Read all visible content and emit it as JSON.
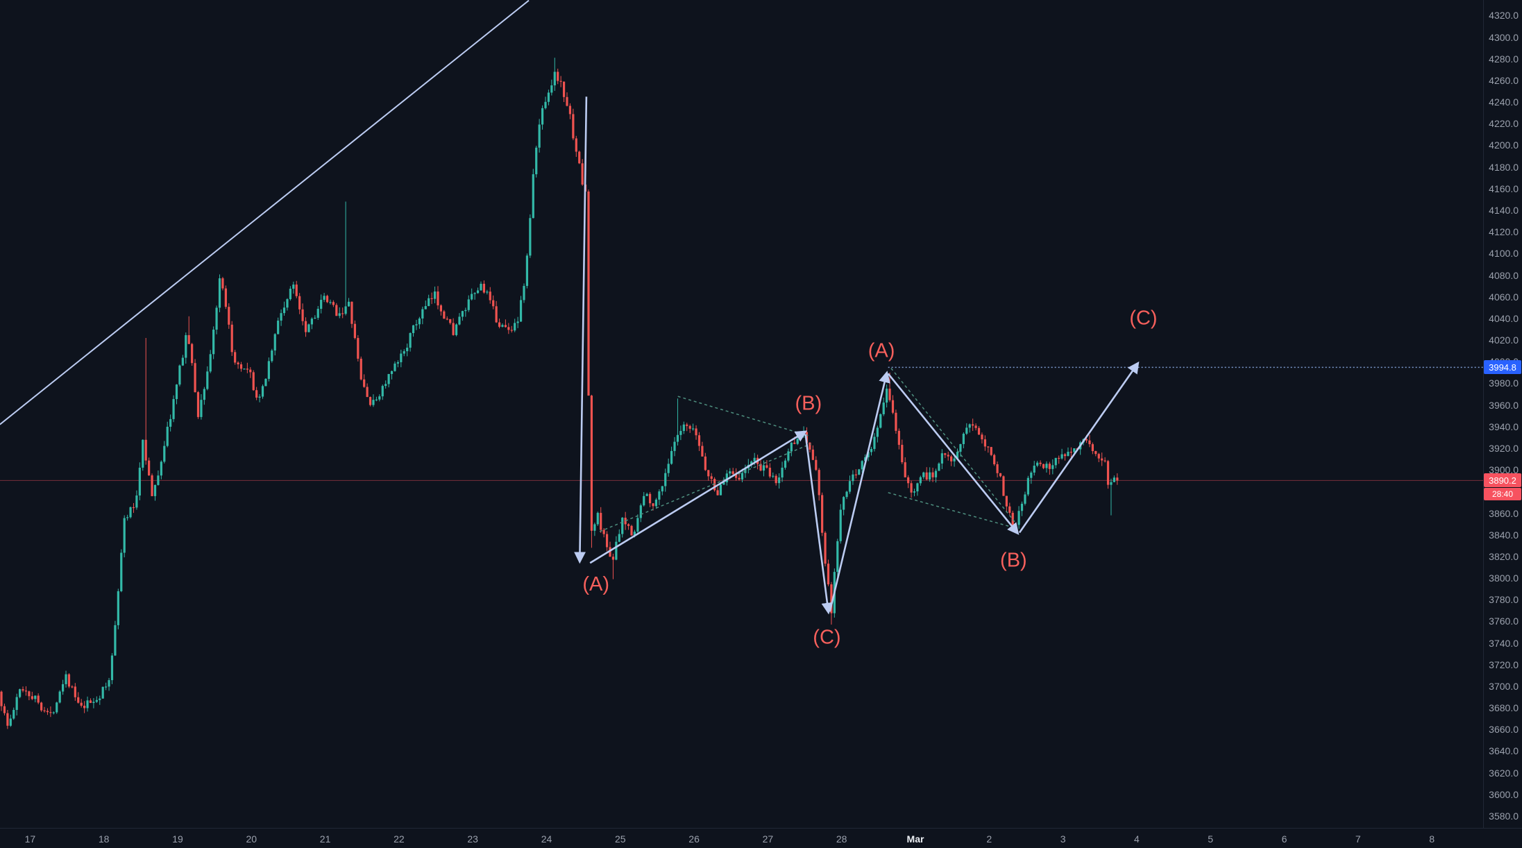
{
  "colors": {
    "bg": "#0e131d",
    "up": "#33b9a8",
    "down": "#ef5350",
    "drawing": "#bcccf2",
    "wedge": "#4e8f7f",
    "wave_label": "#f7605c",
    "target_line": "#7e9bd0",
    "last_price_line": "rgba(247,82,95,0.45)",
    "axis_text": "#9ba1ad"
  },
  "y_axis": {
    "min": 3580,
    "max": 4320,
    "step": 20
  },
  "x_axis": {
    "labels": [
      {
        "text": "17",
        "d": 17
      },
      {
        "text": "18",
        "d": 18
      },
      {
        "text": "19",
        "d": 19
      },
      {
        "text": "20",
        "d": 20
      },
      {
        "text": "21",
        "d": 21
      },
      {
        "text": "22",
        "d": 22
      },
      {
        "text": "23",
        "d": 23
      },
      {
        "text": "24",
        "d": 24
      },
      {
        "text": "25",
        "d": 25
      },
      {
        "text": "26",
        "d": 26
      },
      {
        "text": "27",
        "d": 27
      },
      {
        "text": "28",
        "d": 28
      },
      {
        "text": "Mar",
        "d": 29,
        "major": true
      },
      {
        "text": "2",
        "d": 30
      },
      {
        "text": "3",
        "d": 31
      },
      {
        "text": "4",
        "d": 32
      },
      {
        "text": "5",
        "d": 33
      },
      {
        "text": "6",
        "d": 34
      },
      {
        "text": "7",
        "d": 35
      },
      {
        "text": "8",
        "d": 36
      }
    ]
  },
  "badges": {
    "target": {
      "text": "3994.8",
      "color": "#2962ff"
    },
    "last": {
      "text": "3890.2",
      "color": "#f7525f"
    },
    "countdown": {
      "text": "28:40",
      "color": "#f7525f"
    }
  },
  "levels": {
    "target_price": 3994.8,
    "target_from_day": 28.63,
    "last_price": 3890.2
  },
  "trend_line": {
    "from": [
      16.59,
      3942
    ],
    "to": [
      23.76,
      4334
    ]
  },
  "wedges": [
    {
      "from": [
        25.78,
        3968
      ],
      "to": [
        27.58,
        3931
      ]
    },
    {
      "from": [
        24.72,
        3843
      ],
      "to": [
        27.58,
        3924
      ]
    },
    {
      "from": [
        28.67,
        3994
      ],
      "to": [
        30.37,
        3850
      ]
    },
    {
      "from": [
        28.63,
        3879
      ],
      "to": [
        30.37,
        3846
      ]
    }
  ],
  "arrows": [
    {
      "from": [
        24.54,
        4245
      ],
      "to": [
        24.45,
        3816
      ]
    },
    {
      "from": [
        24.59,
        3814
      ],
      "to": [
        27.5,
        3935
      ]
    },
    {
      "from": [
        27.51,
        3933
      ],
      "to": [
        27.82,
        3769
      ]
    },
    {
      "from": [
        27.84,
        3769
      ],
      "to": [
        28.61,
        3989
      ]
    },
    {
      "from": [
        28.63,
        3989
      ],
      "to": [
        30.38,
        3842
      ]
    },
    {
      "from": [
        30.41,
        3842
      ],
      "to": [
        32.01,
        3998
      ]
    }
  ],
  "wave_labels": [
    {
      "text": "(A)",
      "at": [
        24.67,
        3795
      ]
    },
    {
      "text": "(B)",
      "at": [
        27.55,
        3962
      ]
    },
    {
      "text": "(C)",
      "at": [
        27.8,
        3746
      ]
    },
    {
      "text": "(A)",
      "at": [
        28.54,
        4011
      ]
    },
    {
      "text": "(B)",
      "at": [
        30.33,
        3817
      ]
    },
    {
      "text": "(C)",
      "at": [
        32.09,
        4041
      ]
    }
  ],
  "chart_data": {
    "type": "candlestick",
    "title": "",
    "y_range": [
      3580,
      4320
    ],
    "time_range": [
      16.59,
      31.73
    ],
    "last_close": 3890.2,
    "price_path": [
      [
        16.59,
        3695
      ],
      [
        16.72,
        3662
      ],
      [
        16.9,
        3700
      ],
      [
        17.1,
        3688
      ],
      [
        17.3,
        3672
      ],
      [
        17.5,
        3712
      ],
      [
        17.7,
        3678
      ],
      [
        17.95,
        3690
      ],
      [
        18.1,
        3705
      ],
      [
        18.3,
        3855
      ],
      [
        18.45,
        3868
      ],
      [
        18.55,
        3930
      ],
      [
        18.68,
        3872
      ],
      [
        19.0,
        3975
      ],
      [
        19.15,
        4030
      ],
      [
        19.3,
        3950
      ],
      [
        19.45,
        4000
      ],
      [
        19.6,
        4078
      ],
      [
        19.8,
        3995
      ],
      [
        20.0,
        3988
      ],
      [
        20.12,
        3960
      ],
      [
        20.4,
        4042
      ],
      [
        20.6,
        4072
      ],
      [
        20.75,
        4030
      ],
      [
        21.0,
        4058
      ],
      [
        21.2,
        4045
      ],
      [
        21.35,
        4052
      ],
      [
        21.5,
        3985
      ],
      [
        21.65,
        3958
      ],
      [
        21.85,
        3982
      ],
      [
        22.0,
        3998
      ],
      [
        22.3,
        4042
      ],
      [
        22.5,
        4062
      ],
      [
        22.75,
        4028
      ],
      [
        23.0,
        4058
      ],
      [
        23.15,
        4072
      ],
      [
        23.35,
        4038
      ],
      [
        23.5,
        4028
      ],
      [
        23.65,
        4042
      ],
      [
        23.75,
        4090
      ],
      [
        23.85,
        4180
      ],
      [
        23.95,
        4232
      ],
      [
        24.05,
        4252
      ],
      [
        24.15,
        4268
      ],
      [
        24.3,
        4238
      ],
      [
        24.42,
        4198
      ],
      [
        24.5,
        4165
      ],
      [
        24.56,
        4158
      ],
      [
        24.61,
        3840
      ],
      [
        24.72,
        3858
      ],
      [
        24.82,
        3832
      ],
      [
        24.92,
        3818
      ],
      [
        25.05,
        3852
      ],
      [
        25.2,
        3842
      ],
      [
        25.35,
        3878
      ],
      [
        25.5,
        3868
      ],
      [
        25.65,
        3902
      ],
      [
        25.78,
        3928
      ],
      [
        25.9,
        3940
      ],
      [
        26.05,
        3932
      ],
      [
        26.2,
        3896
      ],
      [
        26.35,
        3878
      ],
      [
        26.5,
        3902
      ],
      [
        26.65,
        3892
      ],
      [
        26.8,
        3910
      ],
      [
        27.0,
        3898
      ],
      [
        27.15,
        3888
      ],
      [
        27.3,
        3918
      ],
      [
        27.45,
        3936
      ],
      [
        27.55,
        3928
      ],
      [
        27.68,
        3898
      ],
      [
        27.8,
        3812
      ],
      [
        27.88,
        3768
      ],
      [
        28.0,
        3862
      ],
      [
        28.12,
        3886
      ],
      [
        28.28,
        3906
      ],
      [
        28.42,
        3918
      ],
      [
        28.55,
        3952
      ],
      [
        28.65,
        3976
      ],
      [
        28.75,
        3934
      ],
      [
        28.85,
        3904
      ],
      [
        28.95,
        3876
      ],
      [
        29.1,
        3898
      ],
      [
        29.25,
        3892
      ],
      [
        29.4,
        3920
      ],
      [
        29.55,
        3908
      ],
      [
        29.7,
        3934
      ],
      [
        29.82,
        3944
      ],
      [
        29.95,
        3928
      ],
      [
        30.1,
        3908
      ],
      [
        30.22,
        3878
      ],
      [
        30.36,
        3848
      ],
      [
        30.5,
        3880
      ],
      [
        30.65,
        3908
      ],
      [
        30.8,
        3902
      ],
      [
        31.0,
        3914
      ],
      [
        31.15,
        3920
      ],
      [
        31.3,
        3926
      ],
      [
        31.45,
        3914
      ],
      [
        31.6,
        3910
      ],
      [
        31.65,
        3875
      ],
      [
        31.69,
        3896
      ],
      [
        31.73,
        3890.2
      ]
    ],
    "spikes": [
      {
        "d": 18.55,
        "high": 4022
      },
      {
        "d": 19.15,
        "high": 4042
      },
      {
        "d": 21.27,
        "high": 4148
      },
      {
        "d": 24.13,
        "high": 4281
      },
      {
        "d": 24.6,
        "low": 3828
      },
      {
        "d": 24.92,
        "low": 3799
      },
      {
        "d": 25.78,
        "high": 3966
      },
      {
        "d": 27.88,
        "low": 3757
      },
      {
        "d": 28.66,
        "high": 3990
      },
      {
        "d": 31.67,
        "low": 3858
      }
    ]
  }
}
